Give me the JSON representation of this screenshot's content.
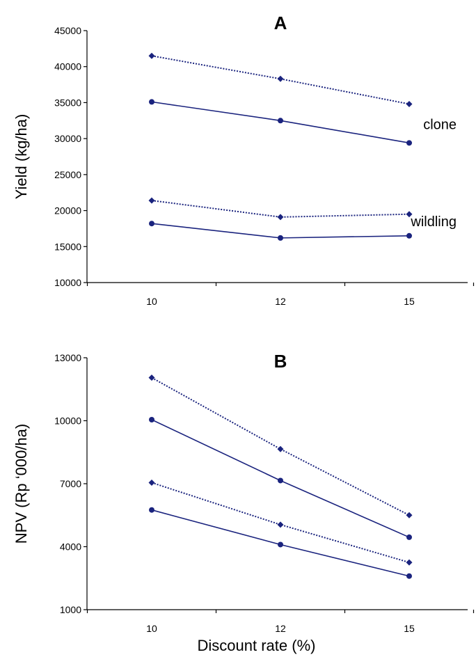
{
  "chart_data": [
    {
      "type": "line",
      "title": "A",
      "xlabel": "",
      "ylabel": "Yield (kg/ha)",
      "categories": [
        "10",
        "12",
        "15"
      ],
      "ylim": [
        10000,
        45000
      ],
      "yticks": [
        10000,
        15000,
        20000,
        25000,
        30000,
        35000,
        40000,
        45000
      ],
      "grid": false,
      "annotations": [
        {
          "text": "clone",
          "near_value": 32000
        },
        {
          "text": "wildling",
          "near_value": 18500
        }
      ],
      "series": [
        {
          "style": "dotted",
          "marker": "diamond",
          "values": [
            41500,
            38300,
            34800
          ]
        },
        {
          "style": "solid",
          "marker": "circle",
          "values": [
            35100,
            32500,
            29400
          ]
        },
        {
          "style": "dotted",
          "marker": "diamond",
          "values": [
            21400,
            19100,
            19500
          ]
        },
        {
          "style": "solid",
          "marker": "circle",
          "values": [
            18200,
            16200,
            16500
          ]
        }
      ],
      "color": "#1a237e"
    },
    {
      "type": "line",
      "title": "B",
      "xlabel": "Discount rate (%)",
      "ylabel": "NPV  (Rp ‘000/ha)",
      "categories": [
        "10",
        "12",
        "15"
      ],
      "ylim": [
        1000,
        13000
      ],
      "yticks": [
        1000,
        4000,
        7000,
        10000,
        13000
      ],
      "grid": false,
      "series": [
        {
          "style": "dotted",
          "marker": "diamond",
          "values": [
            12050,
            8650,
            5500
          ]
        },
        {
          "style": "solid",
          "marker": "circle",
          "values": [
            10050,
            7150,
            4450
          ]
        },
        {
          "style": "dotted",
          "marker": "diamond",
          "values": [
            7050,
            5050,
            3250
          ]
        },
        {
          "style": "solid",
          "marker": "circle",
          "values": [
            5750,
            4100,
            2600
          ]
        }
      ],
      "color": "#1a237e"
    }
  ]
}
